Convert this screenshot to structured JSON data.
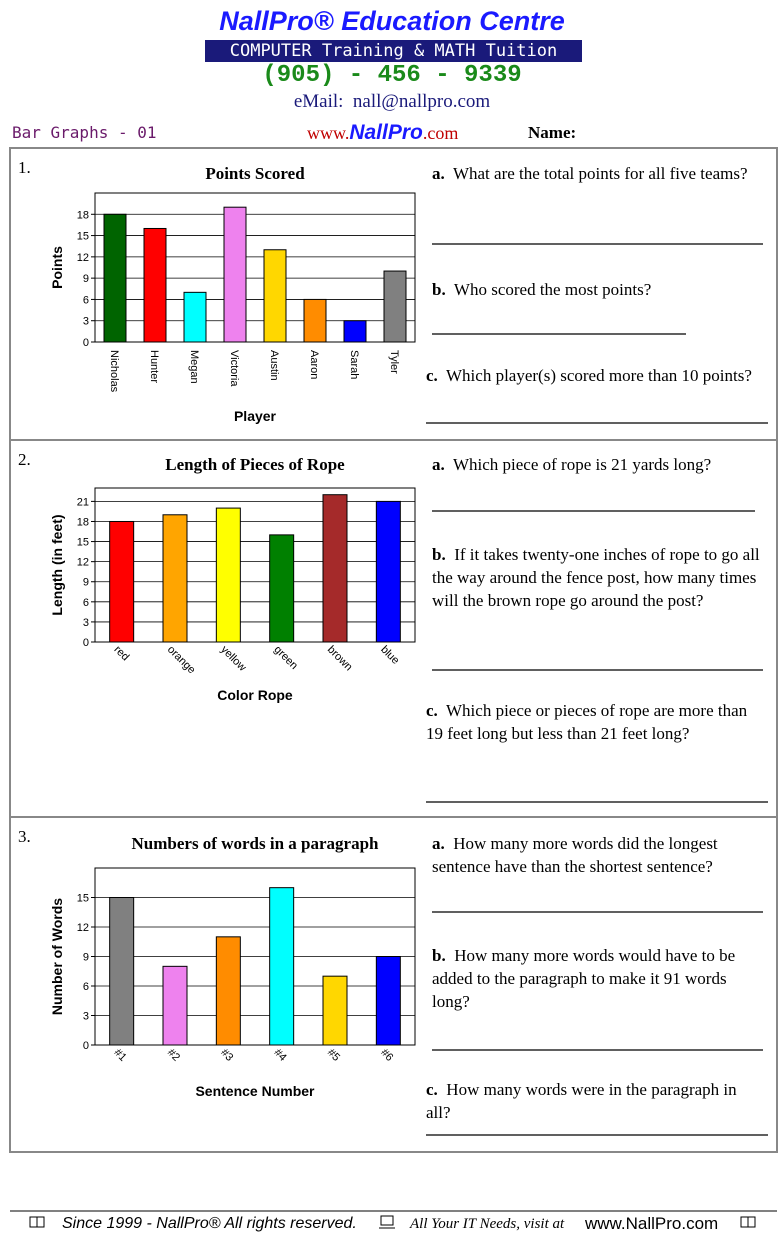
{
  "header": {
    "title": "NallPro® Education Centre",
    "subtitle": "COMPUTER Training & MATH Tuition",
    "phone": "(905) - 456 - 9339",
    "email": "eMail:  nall@nallpro.com",
    "worksheet": "Bar Graphs - 01",
    "web": [
      "www.",
      "NallPro",
      ".com"
    ],
    "name": "Name:"
  },
  "problems": [
    {
      "number": "1.",
      "questions": [
        {
          "letter": "a.",
          "text": "What are the total points for all five teams?"
        },
        {
          "letter": "b.",
          "text": "Who scored the most points?"
        },
        {
          "letter": "c.",
          "text": "Which player(s) scored more than 10 points?"
        }
      ]
    },
    {
      "number": "2.",
      "questions": [
        {
          "letter": "a.",
          "text": "Which piece of rope is 21 yards long?"
        },
        {
          "letter": "b.",
          "text": "If it takes twenty-one inches of rope to go all the way around the fence post, how many times will the brown rope go around the post?"
        },
        {
          "letter": "c.",
          "text": "Which piece or pieces of rope are more than 19 feet long but less than 21 feet long?"
        }
      ]
    },
    {
      "number": "3.",
      "questions": [
        {
          "letter": "a.",
          "text": "How many more words did the longest sentence have than the shortest sentence?"
        },
        {
          "letter": "b.",
          "text": "How many more words would have to be added to the paragraph to make it 91 words long?"
        },
        {
          "letter": "c.",
          "text": "How many words were in the paragraph in all?"
        }
      ]
    }
  ],
  "chart_data": [
    {
      "type": "bar",
      "title": "Points Scored",
      "x_label": "Player",
      "y_label": "Points",
      "categories": [
        "Nicholas",
        "Hunter",
        "Megan",
        "Victoria",
        "Austin",
        "Aaron",
        "Sarah",
        "Tyler"
      ],
      "values": [
        18,
        16,
        7,
        19,
        13,
        6,
        3,
        10
      ],
      "colors": [
        "#006400",
        "#ff0000",
        "#00ffff",
        "#ee82ee",
        "#ffd700",
        "#ff8c00",
        "#0000ff",
        "#808080"
      ],
      "ylim": [
        0,
        21
      ],
      "yticks": [
        0,
        3,
        6,
        9,
        12,
        15,
        18
      ],
      "grid": true
    },
    {
      "type": "bar",
      "title": "Length of Pieces of Rope",
      "x_label": "Color Rope",
      "y_label": "Length (in feet)",
      "categories": [
        "red",
        "orange",
        "yellow",
        "green",
        "brown",
        "blue"
      ],
      "values": [
        18,
        19,
        20,
        16,
        22,
        21
      ],
      "colors": [
        "#ff0000",
        "#ffa500",
        "#ffff00",
        "#008000",
        "#a52a2a",
        "#0000ff"
      ],
      "ylim": [
        0,
        23
      ],
      "yticks": [
        0,
        3,
        6,
        9,
        12,
        15,
        18,
        21
      ],
      "grid": true
    },
    {
      "type": "bar",
      "title": "Numbers of words in a paragraph",
      "x_label": "Sentence Number",
      "y_label": "Number of Words",
      "categories": [
        "#1",
        "#2",
        "#3",
        "#4",
        "#5",
        "#6"
      ],
      "values": [
        15,
        8,
        11,
        16,
        7,
        9
      ],
      "colors": [
        "#808080",
        "#ee82ee",
        "#ff8c00",
        "#00ffff",
        "#ffd700",
        "#0000ff"
      ],
      "ylim": [
        0,
        18
      ],
      "yticks": [
        0,
        3,
        6,
        9,
        12,
        15
      ],
      "grid": true
    }
  ],
  "footer": {
    "rights": "Since 1999 - NallPro® All rights reserved.",
    "visit": "All Your IT Needs, visit at",
    "web": "www.NallPro.com"
  }
}
